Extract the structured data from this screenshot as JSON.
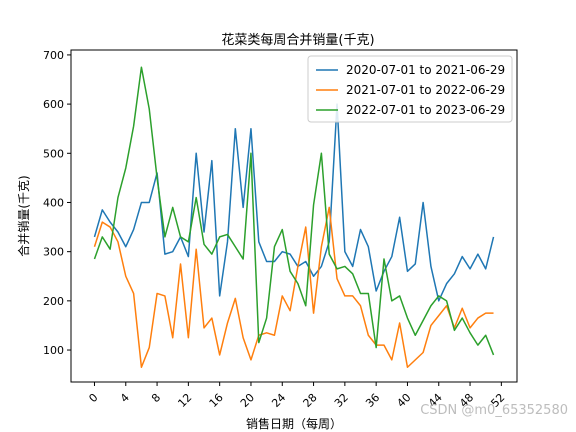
{
  "chart_data": {
    "type": "line",
    "title": "花菜类每周合并销量(千克)",
    "xlabel": "销售日期（每周）",
    "ylabel": "合并销量(千克)",
    "xlim": [
      -3,
      54
    ],
    "ylim": [
      35,
      710
    ],
    "xticks": [
      0,
      4,
      8,
      12,
      16,
      20,
      24,
      28,
      32,
      36,
      40,
      44,
      48,
      52
    ],
    "yticks": [
      100,
      200,
      300,
      400,
      500,
      600,
      700
    ],
    "grid": false,
    "legend_position": "top-right",
    "series": [
      {
        "name": "2020-07-01 to 2021-06-29",
        "color": "#1f77b4",
        "x": [
          0,
          1,
          2,
          3,
          4,
          5,
          6,
          7,
          8,
          9,
          10,
          11,
          12,
          13,
          14,
          15,
          16,
          17,
          18,
          19,
          20,
          21,
          22,
          23,
          24,
          25,
          26,
          27,
          28,
          29,
          30,
          31,
          32,
          33,
          34,
          35,
          36,
          37,
          38,
          39,
          40,
          41,
          42,
          43,
          44,
          45,
          46,
          47,
          48,
          49,
          50,
          51
        ],
        "values": [
          330,
          385,
          360,
          340,
          310,
          345,
          400,
          400,
          460,
          295,
          300,
          330,
          290,
          500,
          340,
          485,
          210,
          320,
          550,
          390,
          550,
          320,
          280,
          280,
          300,
          295,
          270,
          280,
          250,
          270,
          320,
          600,
          300,
          270,
          345,
          310,
          220,
          260,
          290,
          370,
          260,
          275,
          400,
          270,
          200,
          235,
          255,
          290,
          265,
          295,
          265,
          330
        ]
      },
      {
        "name": "2021-07-01 to 2022-06-29",
        "color": "#ff7f0e",
        "x": [
          0,
          1,
          2,
          3,
          4,
          5,
          6,
          7,
          8,
          9,
          10,
          11,
          12,
          13,
          14,
          15,
          16,
          17,
          18,
          19,
          20,
          21,
          22,
          23,
          24,
          25,
          26,
          27,
          28,
          29,
          30,
          31,
          32,
          33,
          34,
          35,
          36,
          37,
          38,
          39,
          40,
          41,
          42,
          43,
          44,
          45,
          46,
          47,
          48,
          49,
          50,
          51
        ],
        "values": [
          310,
          360,
          350,
          320,
          250,
          215,
          65,
          105,
          215,
          210,
          125,
          275,
          125,
          305,
          145,
          165,
          90,
          155,
          205,
          125,
          80,
          130,
          135,
          130,
          210,
          180,
          270,
          350,
          175,
          310,
          390,
          245,
          210,
          210,
          190,
          130,
          110,
          110,
          80,
          155,
          65,
          80,
          95,
          150,
          170,
          190,
          145,
          185,
          145,
          165,
          175,
          175
        ]
      },
      {
        "name": "2022-07-01 to 2023-06-29",
        "color": "#2ca02c",
        "x": [
          0,
          1,
          2,
          3,
          4,
          5,
          6,
          7,
          8,
          9,
          10,
          11,
          12,
          13,
          14,
          15,
          16,
          17,
          18,
          19,
          20,
          21,
          22,
          23,
          24,
          25,
          26,
          27,
          28,
          29,
          30,
          31,
          32,
          33,
          34,
          35,
          36,
          37,
          38,
          39,
          40,
          41,
          42,
          43,
          44,
          45,
          46,
          47,
          48,
          49,
          50,
          51
        ],
        "values": [
          285,
          330,
          305,
          410,
          470,
          555,
          675,
          590,
          450,
          330,
          390,
          330,
          320,
          410,
          315,
          295,
          330,
          335,
          310,
          285,
          500,
          115,
          165,
          310,
          345,
          260,
          235,
          190,
          395,
          500,
          295,
          265,
          270,
          255,
          215,
          215,
          105,
          285,
          200,
          210,
          165,
          130,
          160,
          190,
          210,
          200,
          140,
          165,
          135,
          110,
          130,
          90
        ]
      }
    ]
  },
  "watermark": "CSDN @m0_65352580"
}
